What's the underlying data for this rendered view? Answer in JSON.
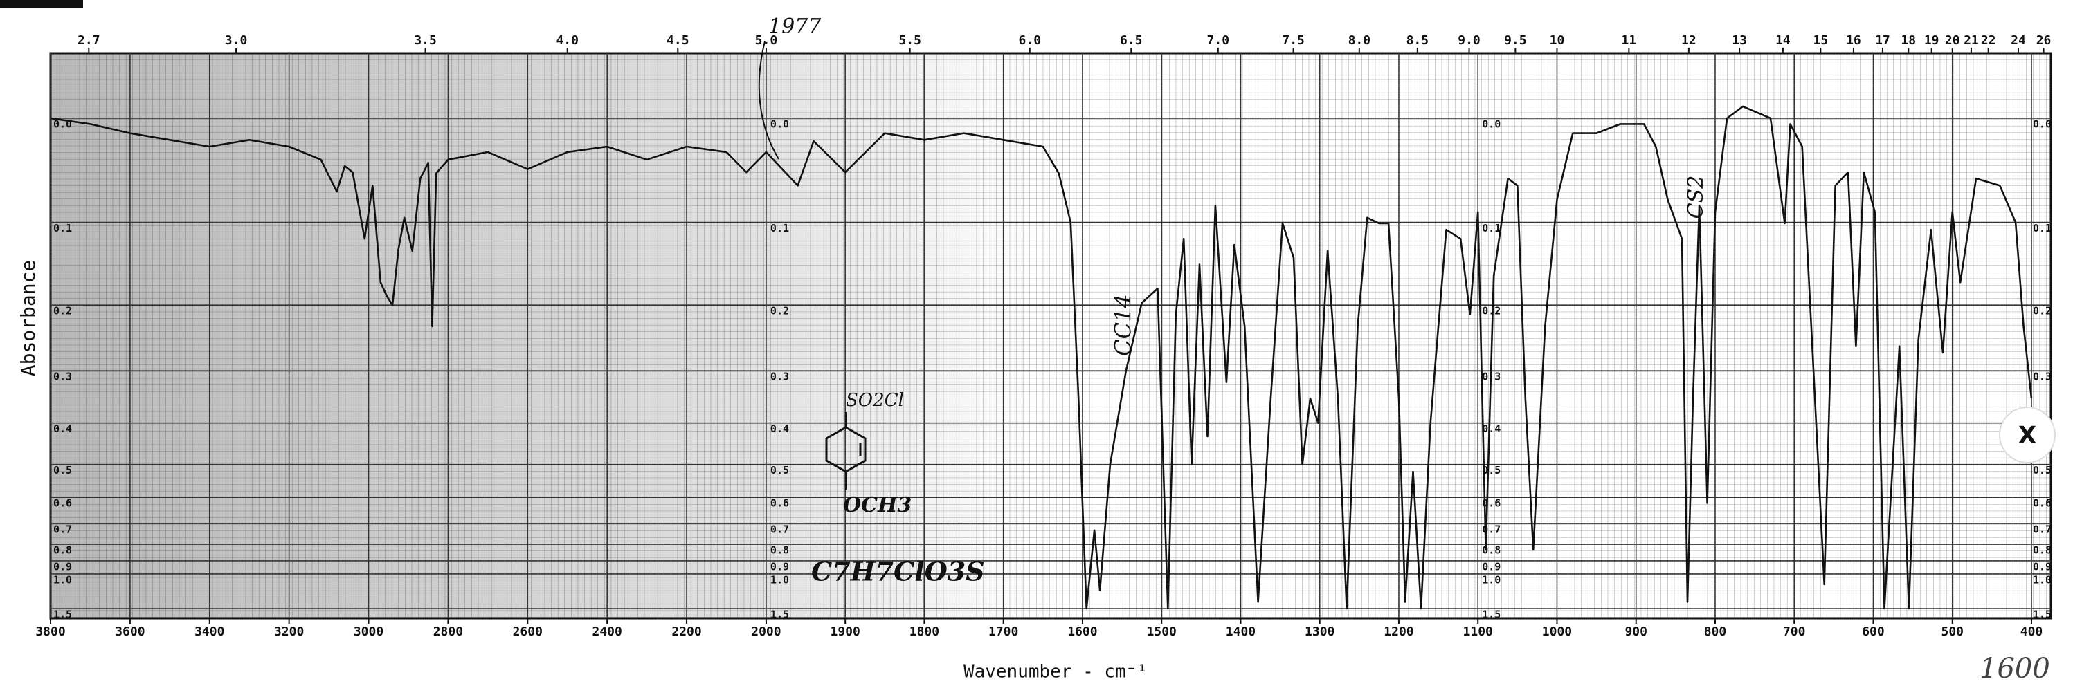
{
  "chart_data": {
    "type": "line",
    "ylabel": "Absorbance",
    "xlabel": "Wavenumber - cm⁻¹",
    "color": "#111111",
    "yscale": "absorbance",
    "grid": true,
    "xlim": [
      3800,
      400
    ],
    "xsegments": [
      [
        3800,
        2000
      ],
      [
        2000,
        400
      ]
    ],
    "ylim": [
      0,
      1.5
    ],
    "xticks": [
      3800,
      3600,
      3400,
      3200,
      3000,
      2800,
      2600,
      2400,
      2200,
      2000,
      1900,
      1800,
      1700,
      1600,
      1500,
      1400,
      1300,
      1200,
      1100,
      1000,
      900,
      800,
      700,
      600,
      500,
      400
    ],
    "yticks": [
      {
        "value": 0,
        "label": "0.0"
      },
      0.1,
      0.2,
      0.3,
      0.4,
      0.5,
      0.6,
      0.7,
      0.8,
      0.9,
      {
        "value": 1,
        "label": "1.0"
      },
      1.5
    ],
    "x2ticks": [
      2.7,
      {
        "value": 3,
        "label": "3.0"
      },
      3.5,
      {
        "value": 4,
        "label": "4.0"
      },
      4.5,
      {
        "value": 5,
        "label": "5.0"
      },
      5.5,
      {
        "value": 6,
        "label": "6.0"
      },
      6.5,
      {
        "value": 7,
        "label": "7.0"
      },
      7.5,
      {
        "value": 8,
        "label": "8.0"
      },
      8.5,
      {
        "value": 9,
        "label": "9.0"
      },
      9.5,
      10,
      11,
      12,
      13,
      14,
      15,
      16,
      17,
      18,
      19,
      20,
      21,
      22,
      24,
      26
    ],
    "x": [
      3800,
      3700,
      3600,
      3500,
      3400,
      3300,
      3200,
      3120,
      3080,
      3060,
      3040,
      3010,
      2990,
      2970,
      2955,
      2940,
      2925,
      2910,
      2890,
      2870,
      2850,
      2840,
      2830,
      2800,
      2700,
      2600,
      2500,
      2400,
      2300,
      2200,
      2100,
      2050,
      2000,
      1960,
      1940,
      1900,
      1850,
      1800,
      1750,
      1700,
      1650,
      1630,
      1615,
      1605,
      1595,
      1585,
      1578,
      1565,
      1545,
      1525,
      1505,
      1492,
      1482,
      1472,
      1462,
      1452,
      1442,
      1432,
      1418,
      1408,
      1395,
      1378,
      1362,
      1347,
      1333,
      1322,
      1312,
      1302,
      1290,
      1277,
      1266,
      1252,
      1240,
      1225,
      1213,
      1200,
      1192,
      1182,
      1172,
      1160,
      1150,
      1140,
      1122,
      1110,
      1100,
      1090,
      1080,
      1062,
      1050,
      1040,
      1030,
      1015,
      1000,
      980,
      950,
      920,
      890,
      875,
      860,
      842,
      835,
      828,
      820,
      810,
      800,
      785,
      765,
      730,
      712,
      705,
      690,
      662,
      648,
      632,
      622,
      612,
      598,
      586,
      567,
      555,
      543,
      527,
      512,
      500,
      490,
      470,
      440,
      420,
      410,
      400
    ],
    "values": [
      0.0,
      0.005,
      0.013,
      0.019,
      0.025,
      0.019,
      0.025,
      0.037,
      0.068,
      0.043,
      0.049,
      0.118,
      0.062,
      0.17,
      0.187,
      0.2,
      0.13,
      0.095,
      0.132,
      0.055,
      0.04,
      0.23,
      0.05,
      0.037,
      0.03,
      0.046,
      0.03,
      0.025,
      0.037,
      0.025,
      0.03,
      0.049,
      0.03,
      0.062,
      0.02,
      0.049,
      0.013,
      0.019,
      0.013,
      0.019,
      0.025,
      0.05,
      0.1,
      0.35,
      1.5,
      0.73,
      1.17,
      0.5,
      0.3,
      0.197,
      0.178,
      1.5,
      0.213,
      0.118,
      0.5,
      0.148,
      0.43,
      0.082,
      0.32,
      0.125,
      0.23,
      1.35,
      0.35,
      0.101,
      0.14,
      0.5,
      0.35,
      0.4,
      0.132,
      0.35,
      1.5,
      0.23,
      0.095,
      0.101,
      0.101,
      0.35,
      1.35,
      0.52,
      1.5,
      0.4,
      0.23,
      0.108,
      0.118,
      0.213,
      0.089,
      0.83,
      0.162,
      0.055,
      0.062,
      0.35,
      0.83,
      0.23,
      0.076,
      0.013,
      0.013,
      0.005,
      0.005,
      0.025,
      0.076,
      0.118,
      1.35,
      0.35,
      0.082,
      0.62,
      0.089,
      0.0,
      -0.01,
      0.0,
      0.101,
      0.005,
      0.025,
      1.1,
      0.062,
      0.049,
      0.26,
      0.049,
      0.089,
      1.5,
      0.26,
      1.5,
      0.25,
      0.108,
      0.27,
      0.089,
      0.17,
      0.055,
      0.062,
      0.1,
      0.23,
      0.35
    ],
    "annotations": [
      "CC14",
      "CS2",
      "SO2Cl",
      "OCH3",
      "C7H7ClO3S",
      "1977",
      "1600"
    ]
  },
  "ui": {
    "close_button": "X"
  }
}
